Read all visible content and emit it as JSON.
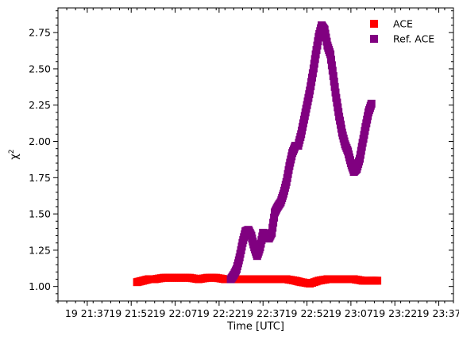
{
  "chart_data": {
    "type": "scatter",
    "xlabel": "Time [UTC]",
    "ylabel": "χ",
    "ylabel_superscript": "2",
    "x_is_time": true,
    "xlim": [
      "21:27",
      "23:42"
    ],
    "ylim": [
      0.9,
      2.92
    ],
    "x_ticks": [
      "19 21:37",
      "19 21:52",
      "19 22:07",
      "19 22:22",
      "19 22:37",
      "19 22:52",
      "19 23:07",
      "19 23:22",
      "19 23:37"
    ],
    "y_ticks": [
      "1.00",
      "1.25",
      "1.50",
      "1.75",
      "2.00",
      "2.25",
      "2.50",
      "2.75"
    ],
    "grid": false,
    "legend_position": "top-right",
    "series": [
      {
        "name": "ACE",
        "color": "#ff0000",
        "marker": "square",
        "points": [
          [
            "21:54",
            1.03
          ],
          [
            "21:56",
            1.04
          ],
          [
            "21:58",
            1.05
          ],
          [
            "22:00",
            1.05
          ],
          [
            "22:03",
            1.06
          ],
          [
            "22:06",
            1.06
          ],
          [
            "22:09",
            1.06
          ],
          [
            "22:12",
            1.06
          ],
          [
            "22:15",
            1.05
          ],
          [
            "22:18",
            1.06
          ],
          [
            "22:21",
            1.06
          ],
          [
            "22:24",
            1.05
          ],
          [
            "22:27",
            1.05
          ],
          [
            "22:30",
            1.05
          ],
          [
            "22:33",
            1.05
          ],
          [
            "22:36",
            1.05
          ],
          [
            "22:39",
            1.05
          ],
          [
            "22:42",
            1.05
          ],
          [
            "22:45",
            1.05
          ],
          [
            "22:48",
            1.04
          ],
          [
            "22:50",
            1.03
          ],
          [
            "22:53",
            1.02
          ],
          [
            "22:56",
            1.04
          ],
          [
            "22:59",
            1.05
          ],
          [
            "23:02",
            1.05
          ],
          [
            "23:05",
            1.05
          ],
          [
            "23:08",
            1.05
          ],
          [
            "23:11",
            1.04
          ],
          [
            "23:14",
            1.04
          ],
          [
            "23:16",
            1.04
          ]
        ]
      },
      {
        "name": "Ref. ACE",
        "color": "#800080",
        "marker": "square",
        "points": [
          [
            "22:26",
            1.05
          ],
          [
            "22:27",
            1.08
          ],
          [
            "22:28",
            1.12
          ],
          [
            "22:29",
            1.2
          ],
          [
            "22:30",
            1.3
          ],
          [
            "22:31",
            1.38
          ],
          [
            "22:32",
            1.39
          ],
          [
            "22:33",
            1.35
          ],
          [
            "22:34",
            1.27
          ],
          [
            "22:35",
            1.21
          ],
          [
            "22:36",
            1.27
          ],
          [
            "22:37",
            1.37
          ],
          [
            "22:38",
            1.36
          ],
          [
            "22:39",
            1.33
          ],
          [
            "22:40",
            1.37
          ],
          [
            "22:41",
            1.51
          ],
          [
            "22:42",
            1.55
          ],
          [
            "22:43",
            1.58
          ],
          [
            "22:44",
            1.64
          ],
          [
            "22:45",
            1.72
          ],
          [
            "22:46",
            1.83
          ],
          [
            "22:47",
            1.92
          ],
          [
            "22:48",
            1.97
          ],
          [
            "22:49",
            1.97
          ],
          [
            "22:50",
            2.05
          ],
          [
            "22:51",
            2.15
          ],
          [
            "22:52",
            2.25
          ],
          [
            "22:53",
            2.35
          ],
          [
            "22:54",
            2.47
          ],
          [
            "22:55",
            2.6
          ],
          [
            "22:56",
            2.72
          ],
          [
            "22:57",
            2.8
          ],
          [
            "22:58",
            2.77
          ],
          [
            "22:59",
            2.66
          ],
          [
            "23:00",
            2.6
          ],
          [
            "23:01",
            2.45
          ],
          [
            "23:02",
            2.3
          ],
          [
            "23:03",
            2.17
          ],
          [
            "23:04",
            2.06
          ],
          [
            "23:05",
            1.98
          ],
          [
            "23:06",
            1.93
          ],
          [
            "23:07",
            1.85
          ],
          [
            "23:08",
            1.79
          ],
          [
            "23:09",
            1.81
          ],
          [
            "23:10",
            1.88
          ],
          [
            "23:11",
            1.99
          ],
          [
            "23:12",
            2.1
          ],
          [
            "23:13",
            2.2
          ],
          [
            "23:14",
            2.26
          ]
        ]
      }
    ]
  }
}
